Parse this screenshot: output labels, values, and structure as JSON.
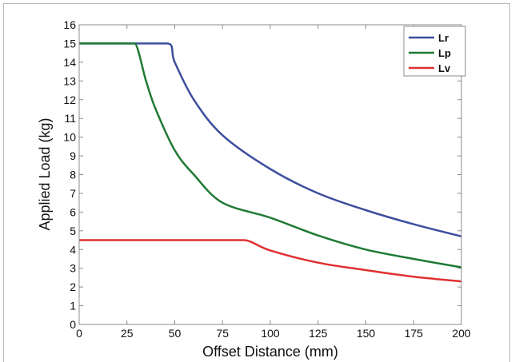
{
  "chart_data": {
    "type": "line",
    "xlabel": "Offset Distance (mm)",
    "ylabel": "Applied Load (kg)",
    "xlim": [
      0,
      200
    ],
    "ylim": [
      0,
      16
    ],
    "x_ticks": [
      0,
      25,
      50,
      75,
      100,
      125,
      150,
      175,
      200
    ],
    "y_ticks": [
      0,
      1,
      2,
      3,
      4,
      5,
      6,
      7,
      8,
      9,
      10,
      11,
      12,
      13,
      14,
      15,
      16
    ],
    "grid": false,
    "legend_position": "top-right",
    "series": [
      {
        "name": "Lr",
        "color": "#3d4e9e",
        "x": [
          0,
          25,
          46,
          50,
          60,
          75,
          100,
          125,
          150,
          175,
          200
        ],
        "y": [
          15,
          15,
          15,
          14.0,
          12.0,
          10.1,
          8.3,
          7.0,
          6.1,
          5.35,
          4.7
        ]
      },
      {
        "name": "Lp",
        "color": "#1f7a35",
        "x": [
          0,
          25,
          29,
          35,
          40,
          50,
          60,
          75,
          100,
          125,
          150,
          175,
          200
        ],
        "y": [
          15,
          15,
          15,
          13.0,
          11.5,
          9.3,
          8.0,
          6.5,
          5.7,
          4.75,
          4.0,
          3.5,
          3.05
        ]
      },
      {
        "name": "Lv",
        "color": "#e03030",
        "x": [
          0,
          25,
          50,
          75,
          86,
          100,
          125,
          150,
          175,
          200
        ],
        "y": [
          4.5,
          4.5,
          4.5,
          4.5,
          4.5,
          3.95,
          3.3,
          2.9,
          2.55,
          2.3
        ]
      }
    ]
  }
}
